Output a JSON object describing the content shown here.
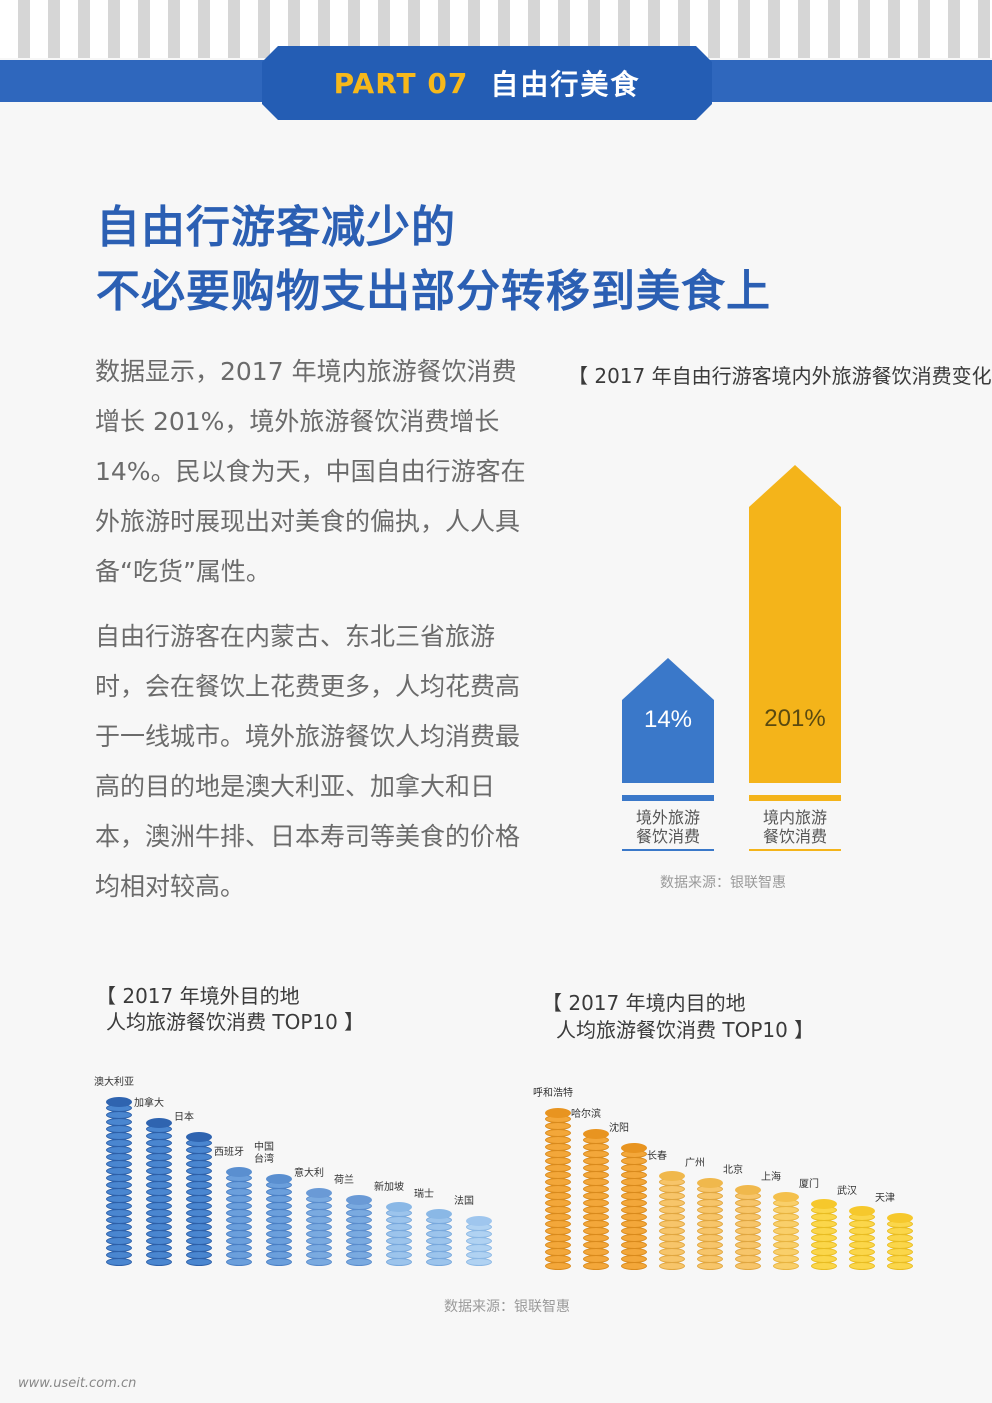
{
  "header": {
    "part_label": "PART 07",
    "part_title": "自由行美食"
  },
  "headline": {
    "line1": "自由行游客减少的",
    "line2": "不必要购物支出部分转移到美食上"
  },
  "body": {
    "para1": "数据显示，2017 年境内旅游餐饮消费增长 201%，境外旅游餐饮消费增长 14%。民以食为天，中国自由行游客在外旅游时展现出对美食的偏执，人人具备“吃货”属性。",
    "para2": "自由行游客在内蒙古、东北三省旅游时，会在餐饮上花费更多，人均花费高于一线城市。境外旅游餐饮人均消费最高的目的地是澳大利亚、加拿大和日本，澳洲牛排、日本寿司等美食的价格均相对较高。"
  },
  "colors": {
    "brand_blue": "#2f67bd",
    "accent_yellow": "#f6b81b",
    "bar_blue": "#3a78c9",
    "bar_yellow": "#f4b41a"
  },
  "chart_data": [
    {
      "type": "bar",
      "title": "【 2017 年自由行游客境内外旅游餐饮消费变化",
      "categories": [
        "境外旅游\n餐饮消费",
        "境内旅游\n餐饮消费"
      ],
      "values": [
        14,
        201
      ],
      "value_labels": [
        "14%",
        "201%"
      ],
      "source": "数据来源：银联智惠"
    },
    {
      "type": "bar",
      "title_line1": "【 2017 年境外目的地",
      "title_line2": "人均旅游餐饮消费 TOP10 】",
      "categories": [
        "澳大利亚",
        "加拿大",
        "日本",
        "西班牙",
        "中国\n台湾",
        "意大利",
        "荷兰",
        "新加坡",
        "瑞士",
        "法国"
      ],
      "values": [
        10,
        9,
        8,
        5.8,
        5.3,
        4.6,
        4.2,
        3.6,
        3.3,
        2.8
      ]
    },
    {
      "type": "bar",
      "title_line1": "【 2017 年境内目的地",
      "title_line2": "人均旅游餐饮消费 TOP10 】",
      "categories": [
        "呼和浩特",
        "哈尔滨",
        "沈阳",
        "长春",
        "广州",
        "北京",
        "上海",
        "厦门",
        "武汉",
        "天津"
      ],
      "values": [
        10,
        8.6,
        7.8,
        5.8,
        5.7,
        4.9,
        4.5,
        4.1,
        3.6,
        3.1
      ],
      "source": "数据来源：银联智惠"
    }
  ],
  "watermark": "www.useit.com.cn"
}
